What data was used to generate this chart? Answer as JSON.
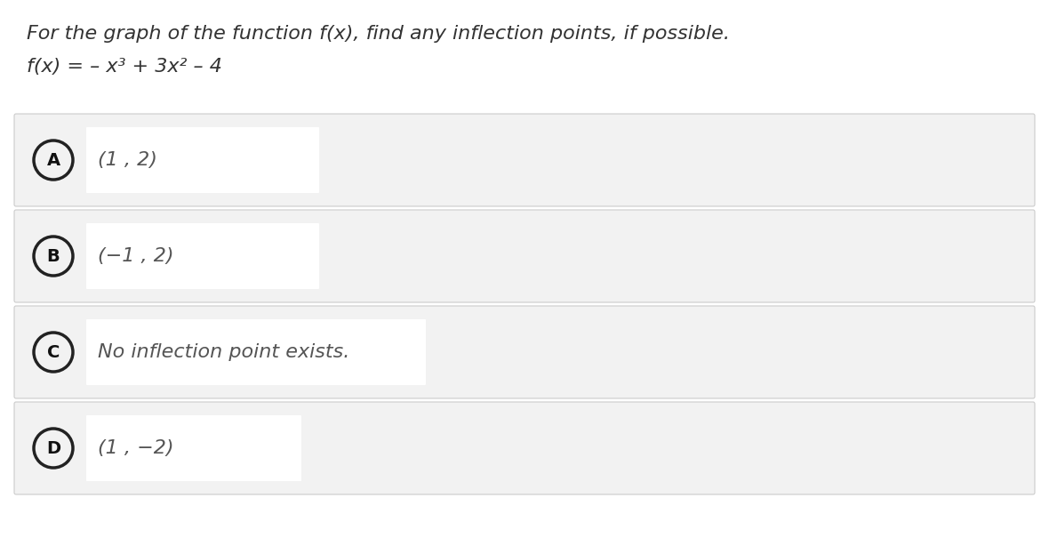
{
  "title_line1": "For the graph of the function f(x), find any inflection points, if possible.",
  "title_line2": "f(x) = – x³ + 3x² – 4",
  "options": [
    {
      "label": "A",
      "text": "(1 , 2)"
    },
    {
      "label": "B",
      "text": "(−1 , 2)"
    },
    {
      "label": "C",
      "text": "No inflection point exists."
    },
    {
      "label": "D",
      "text": "(1 , −2)"
    }
  ],
  "bg_color": "#ffffff",
  "page_bg": "#f5f5f5",
  "option_bg": "#f2f2f2",
  "option_border": "#cccccc",
  "text_bg": "#ffffff",
  "circle_bg": "#f2f2f2",
  "circle_border": "#222222",
  "text_color": "#555555",
  "label_color": "#111111",
  "title_color": "#333333",
  "font_size_title": 16,
  "font_size_option": 16,
  "font_size_label": 14,
  "fig_width": 11.8,
  "fig_height": 6.14,
  "dpi": 100
}
